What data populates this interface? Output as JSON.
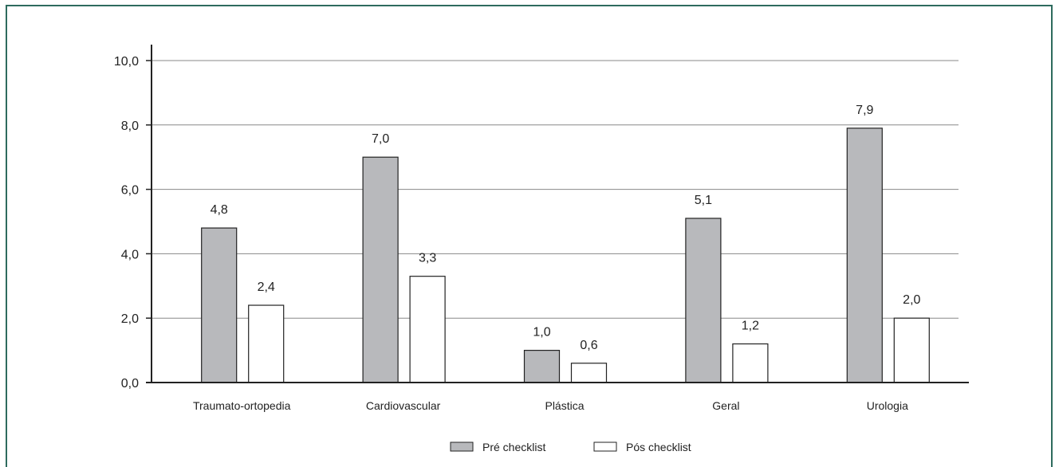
{
  "chart_data": {
    "type": "bar",
    "categories": [
      "Traumato-ortopedia",
      "Cardiovascular",
      "Plástica",
      "Geral",
      "Urologia"
    ],
    "series": [
      {
        "name": "Pré checklist",
        "values": [
          4.8,
          7.0,
          1.0,
          5.1,
          7.9
        ],
        "labels": [
          "4,8",
          "7,0",
          "1,0",
          "5,1",
          "7,9"
        ]
      },
      {
        "name": "Pós checklist",
        "values": [
          2.4,
          3.3,
          0.6,
          1.2,
          2.0
        ],
        "labels": [
          "2,4",
          "3,3",
          "0,6",
          "1,2",
          "2,0"
        ]
      }
    ],
    "ylim": [
      0,
      10
    ],
    "yticks": [
      "0,0",
      "2,0",
      "4,0",
      "6,0",
      "8,0",
      "10,0"
    ],
    "grid": true,
    "legend": "bottom-center",
    "colors": {
      "pre": "#b8b9bc",
      "pos": "#ffffff",
      "frame": "#2e6b5e",
      "grid": "#888888"
    }
  }
}
